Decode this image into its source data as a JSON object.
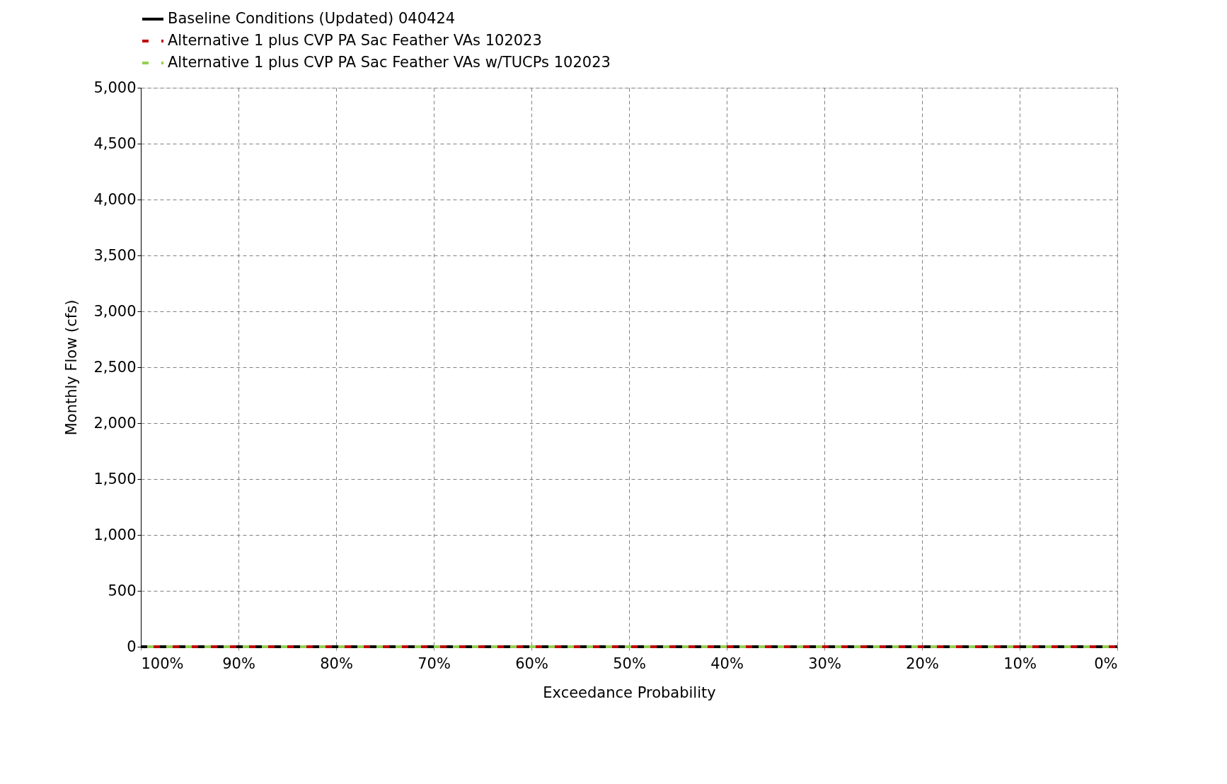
{
  "chart_data": {
    "type": "line",
    "xlabel": "Exceedance Probability",
    "ylabel": "Monthly Flow (cfs)",
    "x": [
      100,
      0
    ],
    "series": [
      {
        "name": "Baseline Conditions (Updated) 040424",
        "color": "#000000",
        "line_style": "solid",
        "values": [
          0,
          0
        ]
      },
      {
        "name": "Alternative 1 plus CVP PA Sac Feather VAs 102023",
        "color": "#c00000",
        "line_style": "dashed",
        "values": [
          0,
          0
        ]
      },
      {
        "name": "Alternative 1 plus CVP PA Sac Feather VAs w/TUCPs 102023",
        "color": "#92d050",
        "line_style": "dashed",
        "values": [
          0,
          0
        ]
      }
    ],
    "xlim": [
      100,
      0
    ],
    "xticks": [
      {
        "value": 100,
        "label": "100%"
      },
      {
        "value": 90,
        "label": "90%"
      },
      {
        "value": 80,
        "label": "80%"
      },
      {
        "value": 70,
        "label": "70%"
      },
      {
        "value": 60,
        "label": "60%"
      },
      {
        "value": 50,
        "label": "50%"
      },
      {
        "value": 40,
        "label": "40%"
      },
      {
        "value": 30,
        "label": "30%"
      },
      {
        "value": 20,
        "label": "20%"
      },
      {
        "value": 10,
        "label": "10%"
      },
      {
        "value": 0,
        "label": "0%"
      }
    ],
    "ylim": [
      0,
      5000
    ],
    "yticks": [
      {
        "value": 0,
        "label": "0"
      },
      {
        "value": 500,
        "label": "500"
      },
      {
        "value": 1000,
        "label": "1,000"
      },
      {
        "value": 1500,
        "label": "1,500"
      },
      {
        "value": 2000,
        "label": "2,000"
      },
      {
        "value": 2500,
        "label": "2,500"
      },
      {
        "value": 3000,
        "label": "3,000"
      },
      {
        "value": 3500,
        "label": "3,500"
      },
      {
        "value": 4000,
        "label": "4,000"
      },
      {
        "value": 4500,
        "label": "4,500"
      },
      {
        "value": 5000,
        "label": "5,000"
      }
    ],
    "grid": true,
    "legend": "top",
    "marker": "none"
  }
}
